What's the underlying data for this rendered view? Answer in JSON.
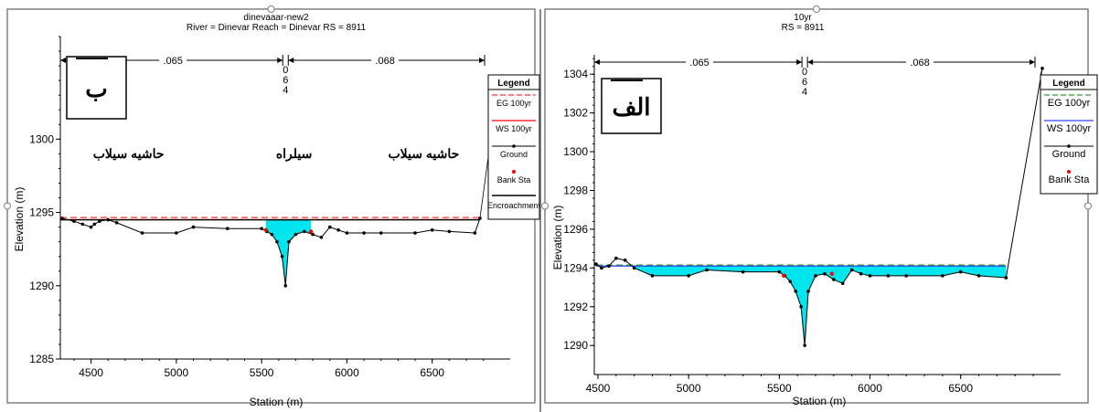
{
  "colors": {
    "water": "#00e5ee",
    "ground": "#000000",
    "eg_left": "#ff3030",
    "ws_left": "#ff0000",
    "eg_right": "#2e9a2e",
    "ws_right": "#3040ff",
    "bank": "#ff0000"
  },
  "chart_data": [
    {
      "type": "line",
      "panel_label": "ب",
      "title_lines": [
        "dinevaaar-new2",
        "River = Dinevar   Reach = Dinevar    RS = 8911"
      ],
      "xlabel": "Station (m)",
      "ylabel": "Elevation (m)",
      "xlim": [
        4320,
        6850
      ],
      "ylim": [
        1285,
        1307
      ],
      "xticks": [
        4500,
        5000,
        5500,
        6000,
        6500
      ],
      "yticks": [
        1285,
        1290,
        1295,
        1300
      ],
      "manning": {
        "left": ".065",
        "right": ".068",
        "split_x": 5640,
        "split_label": [
          "0",
          "6",
          "4"
        ]
      },
      "legend": {
        "title": "Legend",
        "items": [
          {
            "label": "EG 100yr",
            "style": "eg"
          },
          {
            "label": "WS 100yr",
            "style": "ws"
          },
          {
            "label": "Ground",
            "style": "ground"
          },
          {
            "label": "Bank Sta",
            "style": "bank"
          },
          {
            "label": "Encroachment",
            "style": "encroach"
          }
        ]
      },
      "annotations": [
        {
          "text": "حاشیه سیلاب",
          "x": 4720,
          "y": 1298.7
        },
        {
          "text": "سیلراه",
          "x": 5690,
          "y": 1298.7
        },
        {
          "text": "حاشیه سیلاب",
          "x": 6450,
          "y": 1298.7
        }
      ],
      "series": [
        {
          "role": "ground",
          "x": [
            4330,
            4400,
            4450,
            4500,
            4520,
            4550,
            4600,
            4650,
            4800,
            5000,
            5100,
            5300,
            5500,
            5530,
            5560,
            5590,
            5620,
            5640,
            5660,
            5700,
            5750,
            5800,
            5850,
            5900,
            5950,
            6000,
            6100,
            6200,
            6400,
            6500,
            6600,
            6750,
            6780
          ],
          "y": [
            1294.6,
            1294.4,
            1294.2,
            1294.0,
            1294.2,
            1294.4,
            1294.5,
            1294.3,
            1293.6,
            1293.6,
            1294.0,
            1293.9,
            1293.9,
            1293.7,
            1293.5,
            1293.0,
            1292.0,
            1290.0,
            1293.0,
            1293.5,
            1293.7,
            1293.5,
            1293.3,
            1294.0,
            1293.8,
            1293.6,
            1293.6,
            1293.6,
            1293.6,
            1293.8,
            1293.7,
            1293.6,
            1294.6
          ]
        },
        {
          "role": "ws",
          "level": 1294.5,
          "x_range": [
            4320,
            6780
          ]
        },
        {
          "role": "eg",
          "level": 1294.65,
          "x_range": [
            4320,
            6780
          ]
        },
        {
          "role": "fill",
          "level": 1294.5,
          "x_range": [
            5525,
            5790
          ]
        },
        {
          "role": "bank",
          "x": [
            5525,
            5790
          ],
          "y": [
            1293.8,
            1293.7
          ]
        },
        {
          "role": "encroach",
          "level": 1294.5,
          "x_range": [
            4320,
            6780
          ]
        }
      ]
    },
    {
      "type": "line",
      "panel_label": "الف",
      "title_lines": [
        "10yr",
        "RS = 8911"
      ],
      "xlabel": "Station (m)",
      "ylabel": "Elevation (m)",
      "xlim": [
        4480,
        6950
      ],
      "ylim": [
        1288.5,
        1305
      ],
      "xticks": [
        4500,
        5000,
        5500,
        6000,
        6500
      ],
      "yticks": [
        1290,
        1292,
        1294,
        1296,
        1298,
        1300,
        1302,
        1304
      ],
      "manning": {
        "left": ".065",
        "right": ".068",
        "split_x": 5640,
        "split_label": [
          "0",
          "6",
          "4"
        ]
      },
      "legend": {
        "title": "Legend",
        "items": [
          {
            "label": "EG 100yr",
            "style": "eg"
          },
          {
            "label": "WS 100yr",
            "style": "ws"
          },
          {
            "label": "Ground",
            "style": "ground"
          },
          {
            "label": "Bank Sta",
            "style": "bank"
          }
        ]
      },
      "annotations": [],
      "series": [
        {
          "role": "ground",
          "x": [
            4490,
            4520,
            4560,
            4600,
            4650,
            4700,
            4800,
            5000,
            5100,
            5300,
            5500,
            5530,
            5560,
            5590,
            5620,
            5640,
            5660,
            5700,
            5750,
            5800,
            5850,
            5900,
            5950,
            6000,
            6100,
            6200,
            6400,
            6500,
            6600,
            6750,
            6950
          ],
          "y": [
            1294.2,
            1294.0,
            1294.1,
            1294.5,
            1294.4,
            1294.0,
            1293.6,
            1293.6,
            1293.9,
            1293.8,
            1293.8,
            1293.6,
            1293.3,
            1292.8,
            1292.0,
            1290.0,
            1292.8,
            1293.6,
            1293.7,
            1293.4,
            1293.2,
            1293.9,
            1293.7,
            1293.6,
            1293.6,
            1293.6,
            1293.6,
            1293.8,
            1293.6,
            1293.5,
            1304.3
          ]
        },
        {
          "role": "ws",
          "level": 1294.1,
          "x_range": [
            4490,
            6750
          ]
        },
        {
          "role": "eg",
          "level": 1294.15,
          "x_range": [
            4490,
            6750
          ]
        },
        {
          "role": "fill",
          "level": 1294.1,
          "x_range": [
            4700,
            6750
          ]
        },
        {
          "role": "bank",
          "x": [
            5525,
            5790
          ],
          "y": [
            1293.6,
            1293.7
          ]
        }
      ]
    }
  ]
}
